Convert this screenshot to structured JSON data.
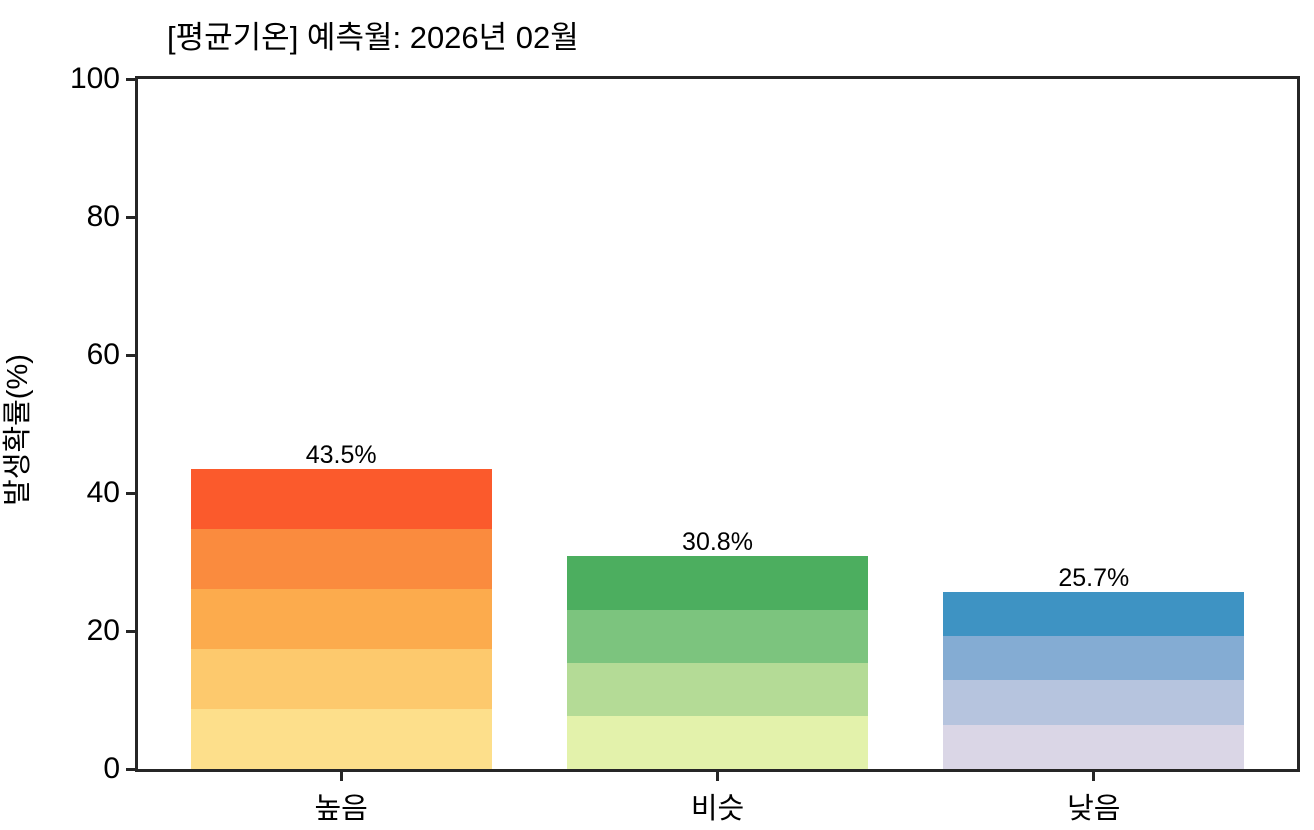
{
  "chart_data": {
    "type": "bar",
    "title": "[평균기온] 예측월: 2026년 02월",
    "xlabel": "",
    "ylabel": "발생확률(%)",
    "categories": [
      "높음",
      "비슷",
      "낮음"
    ],
    "values": [
      43.5,
      30.8,
      25.7
    ],
    "value_labels": [
      "43.5%",
      "30.8%",
      "25.7%"
    ],
    "ylim": [
      0,
      100
    ],
    "yticks": [
      0,
      20,
      40,
      60,
      80,
      100
    ],
    "grid": false,
    "legend": null,
    "bar_width_fraction": 0.8,
    "bar_band_colors": [
      [
        "#fb5a2c",
        "#fa8b3e",
        "#fcab4d",
        "#fdc96d",
        "#fddf8b"
      ],
      [
        "#4cae5f",
        "#7cc47e",
        "#b4db96",
        "#e3f2ab"
      ],
      [
        "#3e93c3",
        "#84acd3",
        "#b6c4de",
        "#dad6e6"
      ]
    ],
    "spine_color": "#262626",
    "text_color": "#000000",
    "background_color": "#ffffff"
  }
}
